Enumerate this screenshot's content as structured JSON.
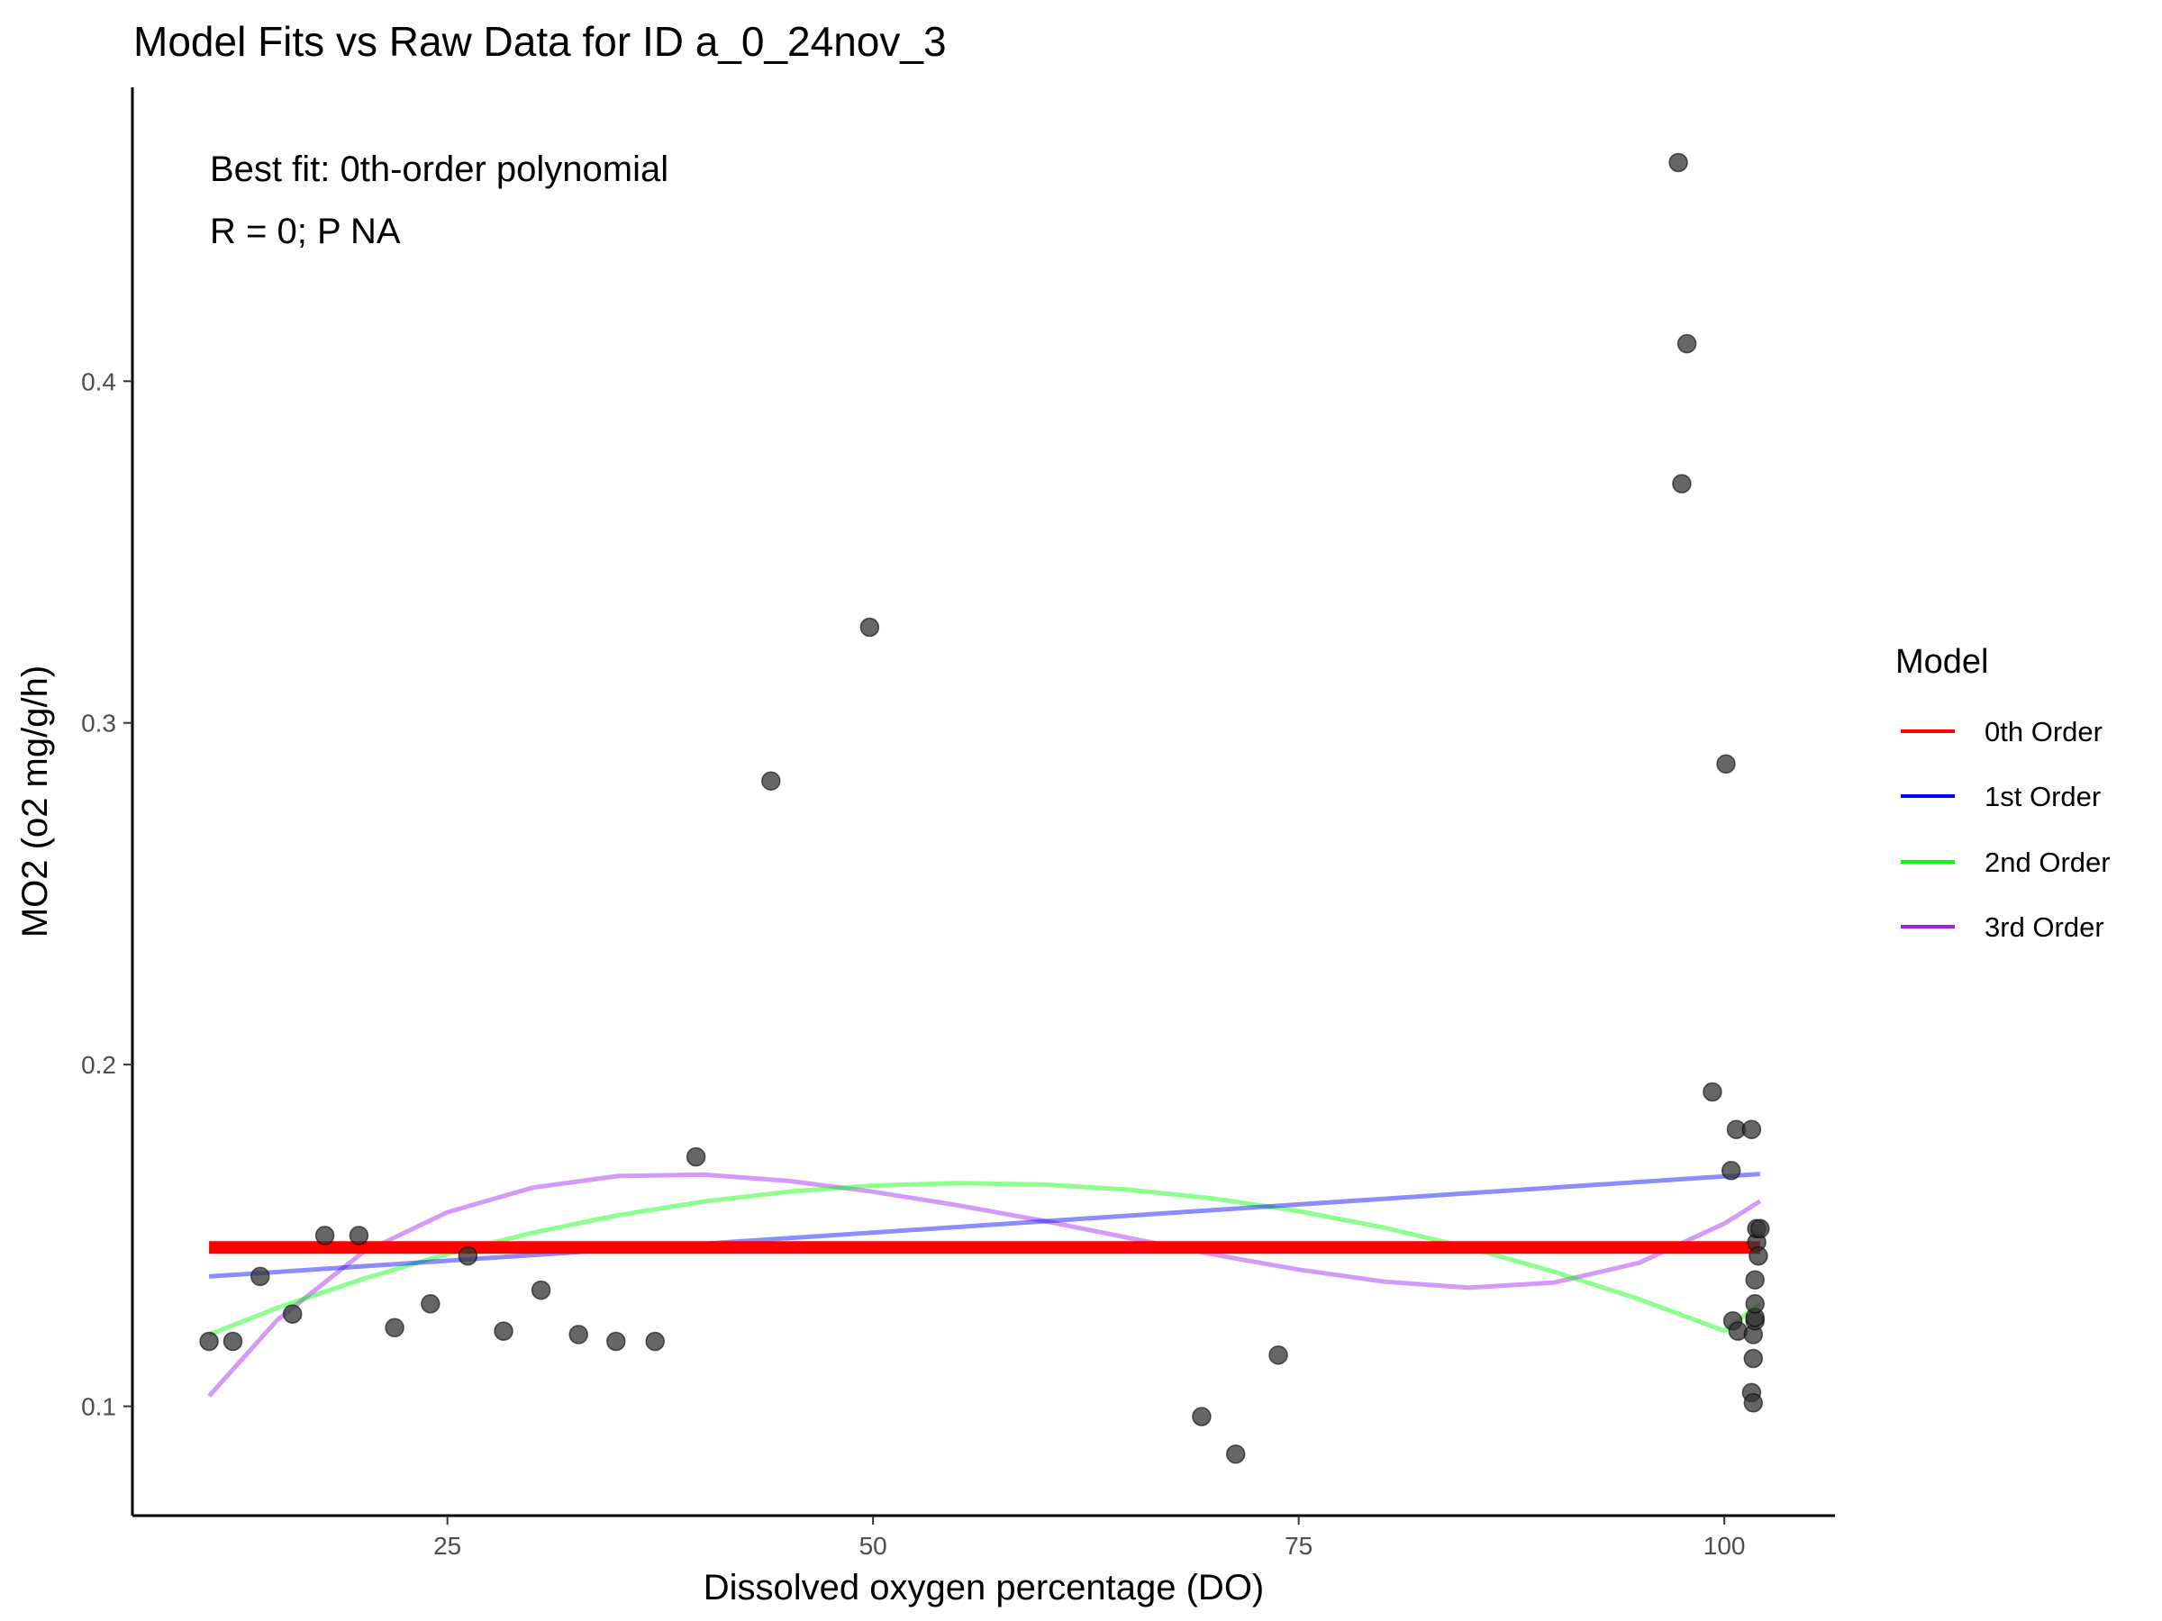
{
  "chart_data": {
    "type": "scatter",
    "title": "Model Fits vs Raw Data for ID a_0_24nov_3",
    "xlabel": "Dissolved oxygen percentage (DO)",
    "ylabel": "MO2 (o2 mg/g/h)",
    "xlim": [
      6.5,
      106.5
    ],
    "ylim": [
      0.068,
      0.486
    ],
    "xticks": [
      25,
      50,
      75,
      100
    ],
    "yticks": [
      0.1,
      0.2,
      0.3,
      0.4
    ],
    "xtick_labels": [
      "25",
      "50",
      "75",
      "100"
    ],
    "ytick_labels": [
      "0.1",
      "0.2",
      "0.3",
      "0.4"
    ],
    "grid": false,
    "legend_position": "right",
    "annotations": [
      "Best fit: 0th-order polynomial",
      "R = 0; P NA"
    ],
    "points": {
      "x": [
        11.0,
        12.4,
        14.0,
        15.9,
        17.8,
        19.8,
        21.9,
        24.0,
        26.2,
        28.3,
        30.5,
        32.7,
        34.9,
        37.2,
        39.6,
        44.0,
        49.8,
        69.3,
        71.3,
        73.8,
        97.3,
        97.5,
        97.8,
        99.3,
        100.1,
        100.4,
        100.5,
        100.7,
        100.8,
        101.6,
        101.6,
        101.7,
        101.7,
        101.7,
        101.8,
        101.8,
        101.8,
        101.8,
        101.9,
        101.9,
        102.0,
        102.1
      ],
      "y": [
        0.119,
        0.119,
        0.138,
        0.127,
        0.15,
        0.15,
        0.123,
        0.13,
        0.144,
        0.122,
        0.134,
        0.121,
        0.119,
        0.119,
        0.173,
        0.283,
        0.328,
        0.097,
        0.086,
        0.115,
        0.464,
        0.37,
        0.411,
        0.192,
        0.288,
        0.169,
        0.125,
        0.181,
        0.122,
        0.181,
        0.104,
        0.101,
        0.114,
        0.121,
        0.125,
        0.126,
        0.13,
        0.137,
        0.148,
        0.152,
        0.144,
        0.152
      ]
    },
    "series": [
      {
        "name": "0th Order",
        "color": "#ff0000",
        "stroke_width": 14,
        "opacity": 1.0,
        "x": [
          11.0,
          102.1
        ],
        "y": [
          0.1465,
          0.1465
        ]
      },
      {
        "name": "1st Order",
        "color": "#0000ff",
        "stroke_width": 5,
        "opacity": 0.45,
        "x": [
          11.0,
          102.1
        ],
        "y": [
          0.138,
          0.168
        ]
      },
      {
        "name": "2nd Order",
        "color": "#00ff00",
        "stroke_width": 5,
        "opacity": 0.45,
        "x": [
          11.0,
          15.0,
          20.0,
          25.0,
          30.0,
          35.0,
          40.0,
          45.0,
          50.0,
          55.0,
          60.0,
          65.0,
          70.0,
          75.0,
          80.0,
          85.0,
          90.0,
          95.0,
          100.0,
          102.1
        ],
        "y": [
          0.121,
          0.1288,
          0.1372,
          0.1446,
          0.1508,
          0.1559,
          0.1599,
          0.1628,
          0.1646,
          0.1653,
          0.1649,
          0.1634,
          0.1608,
          0.1571,
          0.1523,
          0.1464,
          0.1394,
          0.1313,
          0.1221,
          0.13
        ]
      },
      {
        "name": "3rd Order",
        "color": "#a020f0",
        "stroke_width": 5,
        "opacity": 0.45,
        "x": [
          11.0,
          15.0,
          20.0,
          25.0,
          30.0,
          35.0,
          40.0,
          45.0,
          50.0,
          55.0,
          60.0,
          65.0,
          70.0,
          75.0,
          80.0,
          85.0,
          90.0,
          95.0,
          100.0,
          102.1
        ],
        "y": [
          0.103,
          0.1252,
          0.1449,
          0.1568,
          0.164,
          0.1674,
          0.1678,
          0.166,
          0.1628,
          0.1588,
          0.1543,
          0.1493,
          0.1444,
          0.14,
          0.1365,
          0.1347,
          0.1362,
          0.142,
          0.1535,
          0.16
        ]
      }
    ],
    "point_color": "#333333",
    "point_opacity": 0.75
  },
  "legend": {
    "title": "Model",
    "items": [
      "0th Order",
      "1st Order",
      "2nd Order",
      "3rd Order"
    ],
    "colors": [
      "#ff0000",
      "#0000ff",
      "#00ff00",
      "#a020f0"
    ]
  }
}
